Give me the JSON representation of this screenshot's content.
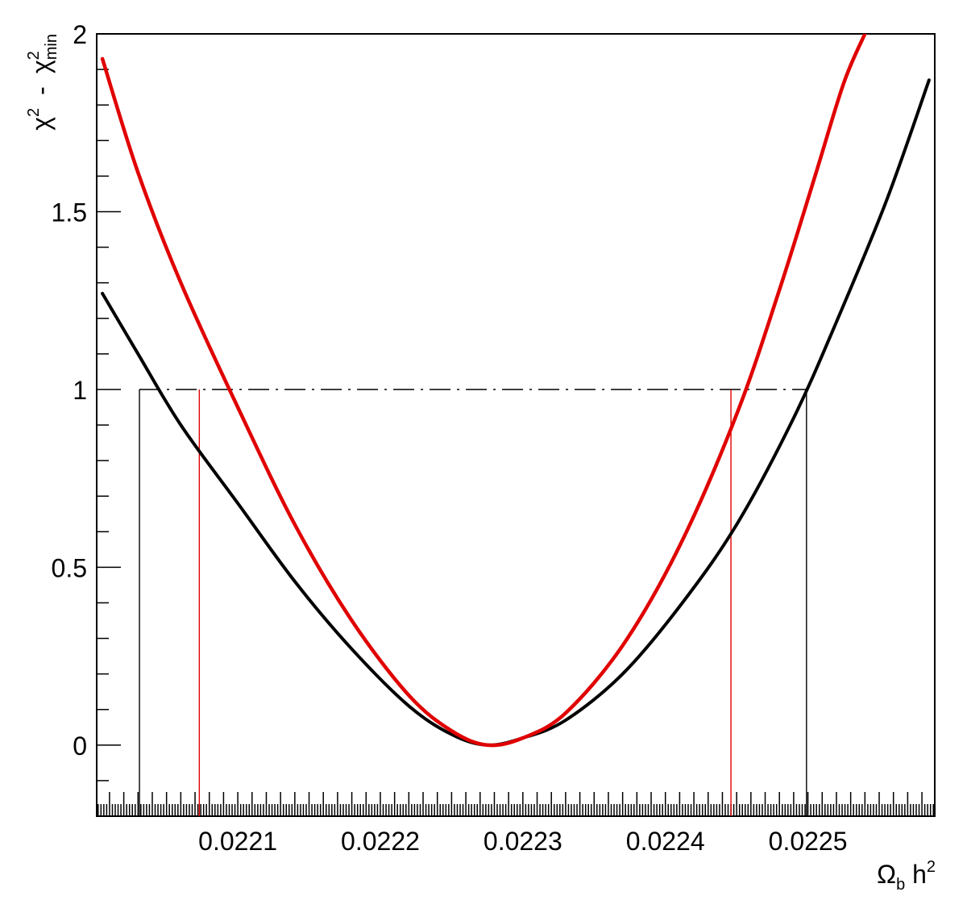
{
  "chart_data": {
    "type": "line",
    "xlabel": {
      "main": "Ω",
      "sub": "b",
      "rest": " h",
      "sup": "2"
    },
    "ylabel": {
      "chi": "χ",
      "sup1": "2",
      "dash": "-",
      "chi2": "χ",
      "sup2": "2",
      "sub2": "min"
    },
    "xlim": [
      0.022001,
      0.022589
    ],
    "ylim": [
      -0.2,
      2.0
    ],
    "x_ticks": [
      {
        "value": 0.0221,
        "label": "0.0221"
      },
      {
        "value": 0.0222,
        "label": "0.0222"
      },
      {
        "value": 0.0223,
        "label": "0.0223"
      },
      {
        "value": 0.0224,
        "label": "0.0224"
      },
      {
        "value": 0.0225,
        "label": "0.0225"
      }
    ],
    "y_ticks": [
      {
        "value": 0,
        "label": "0"
      },
      {
        "value": 0.5,
        "label": "0.5"
      },
      {
        "value": 1,
        "label": "1"
      },
      {
        "value": 1.5,
        "label": "1.5"
      },
      {
        "value": 2,
        "label": "2"
      }
    ],
    "grid": false,
    "legend": "none",
    "series": [
      {
        "color": "#000000",
        "x": [
          0.022005,
          0.02203,
          0.02206,
          0.0221,
          0.02214,
          0.02218,
          0.02222,
          0.02225,
          0.022275,
          0.0223,
          0.02233,
          0.02237,
          0.02241,
          0.02245,
          0.02249,
          0.02252,
          0.022555,
          0.022585
        ],
        "y": [
          1.27,
          1.1,
          0.9,
          0.68,
          0.46,
          0.27,
          0.11,
          0.03,
          0.0,
          0.02,
          0.07,
          0.2,
          0.39,
          0.62,
          0.92,
          1.19,
          1.53,
          1.87
        ]
      },
      {
        "color": "#e00000",
        "x": [
          0.022005,
          0.02203,
          0.02206,
          0.0221,
          0.02214,
          0.02218,
          0.02222,
          0.02225,
          0.022275,
          0.0223,
          0.02233,
          0.02237,
          0.02241,
          0.02245,
          0.02248,
          0.022505,
          0.022525,
          0.02254
        ],
        "y": [
          1.93,
          1.61,
          1.3,
          0.95,
          0.62,
          0.35,
          0.14,
          0.04,
          0.0,
          0.02,
          0.09,
          0.28,
          0.56,
          0.93,
          1.28,
          1.6,
          1.86,
          2.0
        ]
      }
    ],
    "reference_line": {
      "y": 1.0,
      "style": "dash-dot",
      "color": "#000000",
      "x_from": 0.022031,
      "x_to": 0.022499
    },
    "interval_lines": [
      {
        "x": 0.022031,
        "y": 1.0,
        "color": "#000000"
      },
      {
        "x": 0.022499,
        "y": 1.0,
        "color": "#000000"
      },
      {
        "x": 0.022073,
        "y": 1.0,
        "color": "#e00000"
      },
      {
        "x": 0.022446,
        "y": 1.0,
        "color": "#e00000"
      }
    ]
  }
}
